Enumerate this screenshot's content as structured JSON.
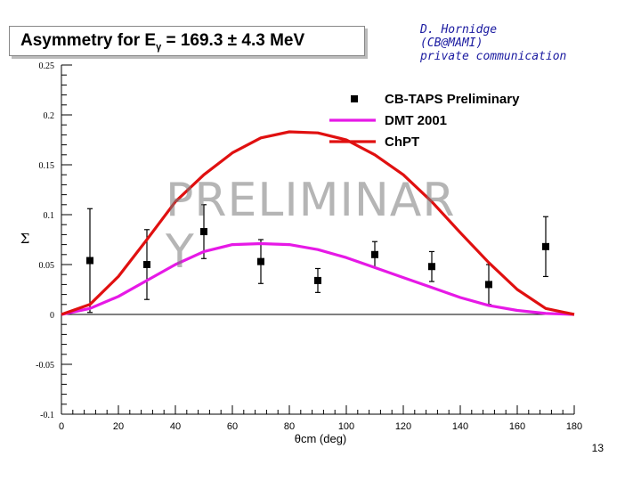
{
  "title": {
    "prefix": "Asymmetry for E",
    "subscript": "γ",
    "suffix": " = 169.3 ±  4.3 MeV"
  },
  "credit": {
    "line1": "D. Hornidge",
    "line2": "(CB@MAMI)",
    "line3": "private communication"
  },
  "page_number": "13",
  "watermark": "PRELIMINARY",
  "colors": {
    "data": "#000000",
    "dmt": "#e619e6",
    "chpt": "#e01010",
    "axis": "#000000"
  },
  "chart_data": {
    "type": "line",
    "xlabel": "θcm (deg)",
    "ylabel": "Σ",
    "xlim": [
      0,
      180
    ],
    "ylim": [
      -0.1,
      0.25
    ],
    "xticks": [
      0,
      20,
      40,
      60,
      80,
      100,
      120,
      140,
      160,
      180
    ],
    "yticks": [
      -0.1,
      -0.05,
      0,
      0.05,
      0.1,
      0.15,
      0.2,
      0.25
    ],
    "ytick_labels": [
      "-0.1",
      "-0.05",
      "0",
      "0.05",
      "0.1",
      "0.15",
      "0.2",
      "0.25"
    ],
    "legend_position": "top-right",
    "series": [
      {
        "name": "CB-TAPS Preliminary",
        "kind": "points",
        "x": [
          10,
          30,
          50,
          70,
          90,
          110,
          130,
          150,
          170
        ],
        "y": [
          0.054,
          0.05,
          0.083,
          0.053,
          0.034,
          0.06,
          0.048,
          0.03,
          0.068
        ],
        "err": [
          0.052,
          0.035,
          0.027,
          0.022,
          0.012,
          0.013,
          0.015,
          0.02,
          0.03
        ]
      },
      {
        "name": "DMT 2001",
        "kind": "line",
        "x": [
          0,
          10,
          20,
          30,
          40,
          50,
          60,
          70,
          80,
          90,
          100,
          110,
          120,
          130,
          140,
          150,
          160,
          170,
          180
        ],
        "y": [
          0,
          0.006,
          0.018,
          0.034,
          0.05,
          0.063,
          0.07,
          0.071,
          0.07,
          0.065,
          0.057,
          0.047,
          0.037,
          0.027,
          0.017,
          0.009,
          0.004,
          0.001,
          0
        ]
      },
      {
        "name": "ChPT",
        "kind": "line",
        "x": [
          0,
          10,
          20,
          30,
          40,
          50,
          60,
          70,
          80,
          90,
          100,
          110,
          120,
          130,
          140,
          150,
          160,
          170,
          180
        ],
        "y": [
          0,
          0.01,
          0.038,
          0.075,
          0.113,
          0.14,
          0.162,
          0.177,
          0.183,
          0.182,
          0.175,
          0.16,
          0.14,
          0.113,
          0.082,
          0.052,
          0.025,
          0.006,
          0
        ]
      }
    ]
  }
}
